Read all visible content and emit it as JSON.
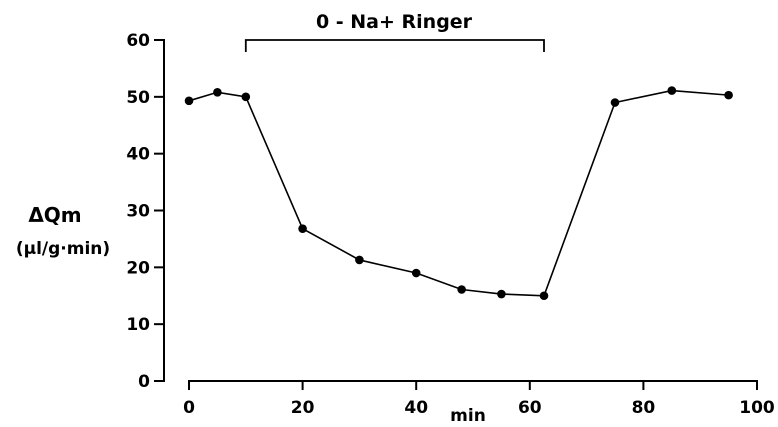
{
  "chart_data": {
    "type": "line",
    "title": "",
    "xlabel": "min",
    "ylabel": "ΔQm",
    "ylabel_unit": "(µl/g·min)",
    "xlim": [
      0,
      100
    ],
    "ylim": [
      0,
      60
    ],
    "x_ticks": [
      0,
      20,
      40,
      60,
      80,
      100
    ],
    "y_ticks": [
      0,
      10,
      20,
      30,
      40,
      50,
      60
    ],
    "grid": false,
    "series": [
      {
        "x": [
          0,
          5,
          10,
          20,
          30,
          40,
          48,
          55,
          62.5,
          75,
          85,
          95
        ],
        "y": [
          49.3,
          50.8,
          50,
          26.8,
          21.3,
          19,
          16.1,
          15.3,
          15,
          49,
          51.1,
          50.3
        ]
      }
    ],
    "annotations": [
      {
        "label": "0 - Na+ Ringer",
        "x_range": [
          10,
          62.5
        ]
      }
    ]
  }
}
